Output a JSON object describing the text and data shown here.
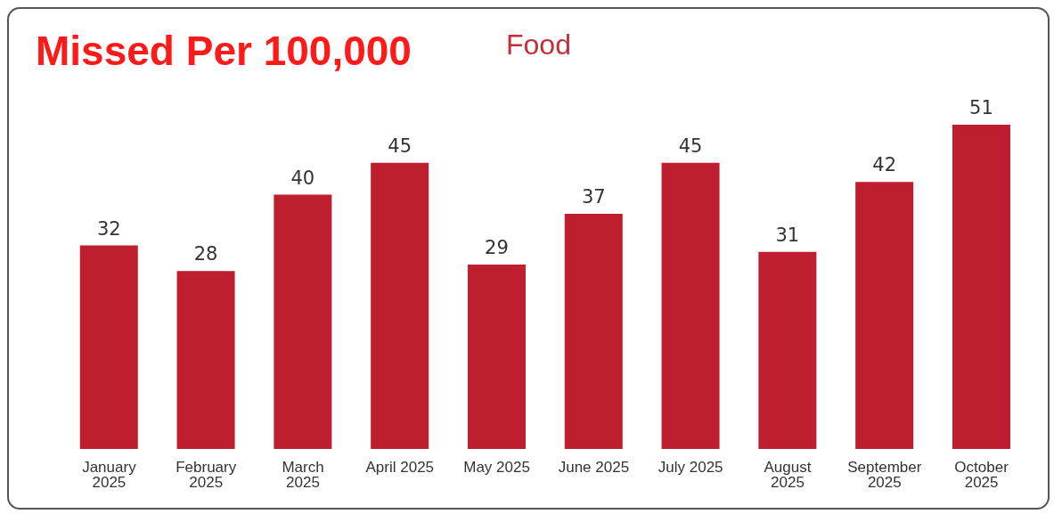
{
  "chart_data": {
    "type": "bar",
    "title": "Missed Per 100,000",
    "subtitle": "Food",
    "categories": [
      "January 2025",
      "February 2025",
      "March 2025",
      "April 2025",
      "May 2025",
      "June 2025",
      "July 2025",
      "August 2025",
      "September 2025",
      "October 2025"
    ],
    "values": [
      32,
      28,
      40,
      45,
      29,
      37,
      45,
      31,
      42,
      51
    ],
    "color": "#be1e2d",
    "data_labels": true,
    "grid": false,
    "legend": false
  }
}
